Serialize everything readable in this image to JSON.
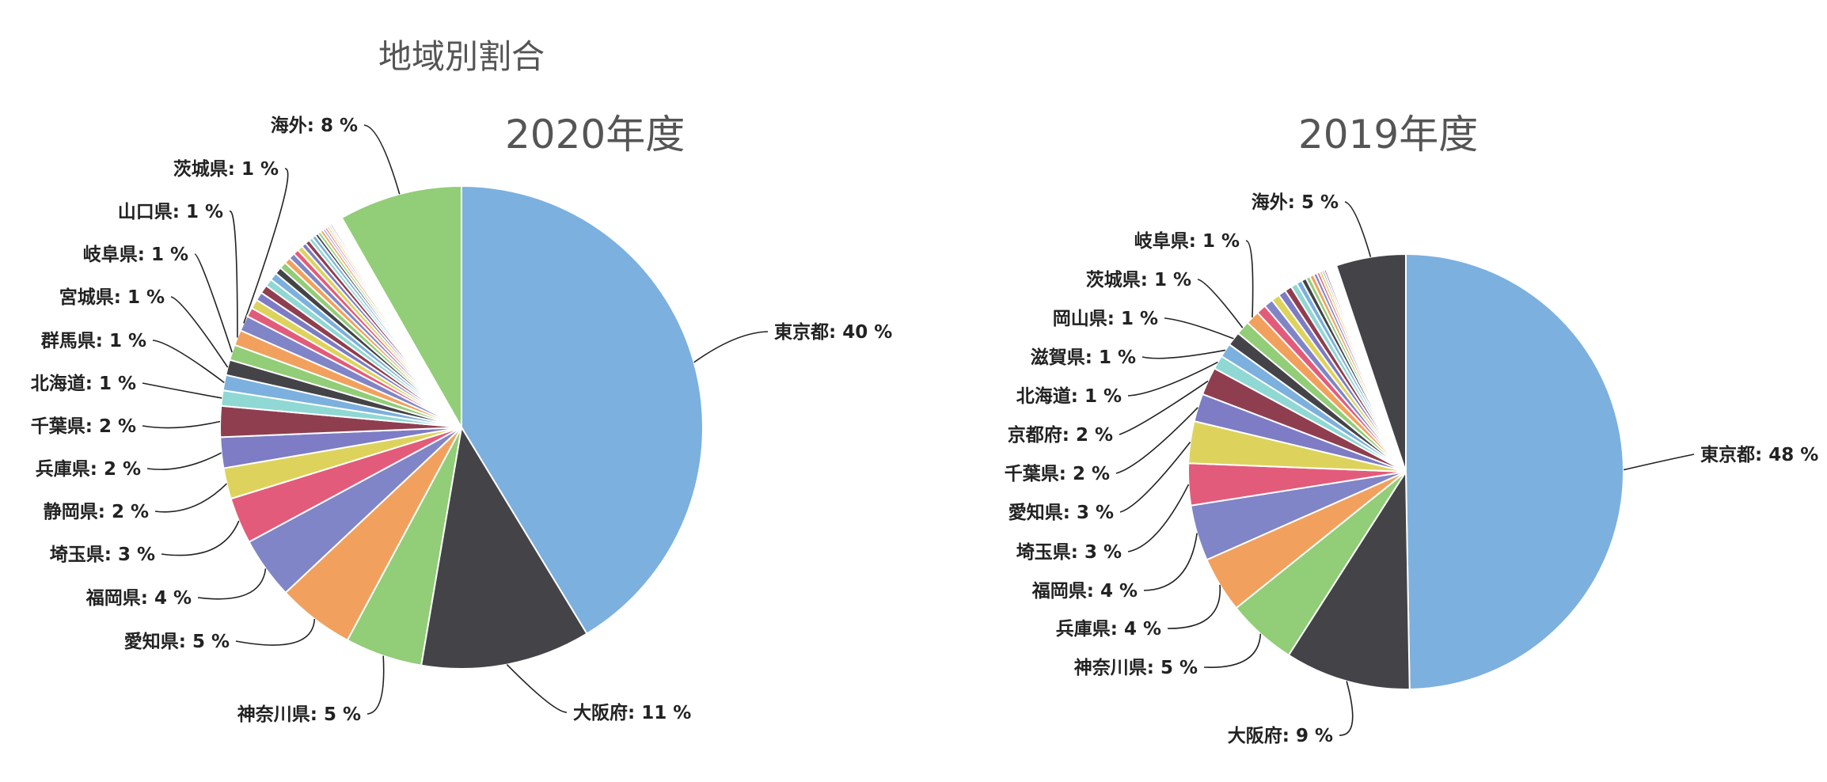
{
  "title": "地域別割合",
  "chart_data": [
    {
      "type": "pie",
      "title": "2020年度",
      "total_segments": 47,
      "slices": [
        {
          "label": "東京都",
          "value": 40,
          "display": "東京都: 40 %",
          "color": "#7cb0de"
        },
        {
          "label": "大阪府",
          "value": 11,
          "display": "大阪府: 11 %",
          "color": "#434348"
        },
        {
          "label": "神奈川県",
          "value": 5,
          "display": "神奈川県: 5 %",
          "color": "#92cd77"
        },
        {
          "label": "愛知県",
          "value": 5,
          "display": "愛知県: 5 %",
          "color": "#f1a15d"
        },
        {
          "label": "福岡県",
          "value": 4,
          "display": "福岡県: 4 %",
          "color": "#7f85c6"
        },
        {
          "label": "埼玉県",
          "value": 3,
          "display": "埼玉県: 3 %",
          "color": "#e35b7a"
        },
        {
          "label": "静岡県",
          "value": 2,
          "display": "静岡県: 2 %",
          "color": "#ddd35c"
        },
        {
          "label": "兵庫県",
          "value": 2,
          "display": "兵庫県: 2 %",
          "color": "#7d7cc4"
        },
        {
          "label": "千葉県",
          "value": 2,
          "display": "千葉県: 2 %",
          "color": "#8f3e50"
        },
        {
          "label": "北海道",
          "value": 1,
          "display": "北海道: 1 %",
          "color": "#8fd8d4"
        },
        {
          "label": "群馬県",
          "value": 1,
          "display": "群馬県: 1 %",
          "color": "#7cb0de"
        },
        {
          "label": "宮城県",
          "value": 1,
          "display": "宮城県: 1 %",
          "color": "#434348"
        },
        {
          "label": "岐阜県",
          "value": 1,
          "display": "岐阜県: 1 %",
          "color": "#92cd77"
        },
        {
          "label": "山口県",
          "value": 1,
          "display": "山口県: 1 %",
          "color": "#f1a15d"
        },
        {
          "label": "茨城県",
          "value": 1,
          "display": "茨城県: 1 %",
          "color": "#7f85c6"
        },
        {
          "label": "",
          "value": 0.6,
          "display": "",
          "color": "#e35b7a"
        },
        {
          "label": "",
          "value": 0.6,
          "display": "",
          "color": "#ddd35c"
        },
        {
          "label": "",
          "value": 0.55,
          "display": "",
          "color": "#7d7cc4"
        },
        {
          "label": "",
          "value": 0.55,
          "display": "",
          "color": "#8f3e50"
        },
        {
          "label": "",
          "value": 0.5,
          "display": "",
          "color": "#8fd8d4"
        },
        {
          "label": "",
          "value": 0.5,
          "display": "",
          "color": "#7cb0de"
        },
        {
          "label": "",
          "value": 0.45,
          "display": "",
          "color": "#434348"
        },
        {
          "label": "",
          "value": 0.45,
          "display": "",
          "color": "#92cd77"
        },
        {
          "label": "",
          "value": 0.4,
          "display": "",
          "color": "#f1a15d"
        },
        {
          "label": "",
          "value": 0.4,
          "display": "",
          "color": "#7f85c6"
        },
        {
          "label": "",
          "value": 0.35,
          "display": "",
          "color": "#e35b7a"
        },
        {
          "label": "",
          "value": 0.35,
          "display": "",
          "color": "#ddd35c"
        },
        {
          "label": "",
          "value": 0.3,
          "display": "",
          "color": "#7d7cc4"
        },
        {
          "label": "",
          "value": 0.3,
          "display": "",
          "color": "#8f3e50"
        },
        {
          "label": "",
          "value": 0.25,
          "display": "",
          "color": "#8fd8d4"
        },
        {
          "label": "",
          "value": 0.25,
          "display": "",
          "color": "#7cb0de"
        },
        {
          "label": "",
          "value": 0.2,
          "display": "",
          "color": "#434348"
        },
        {
          "label": "",
          "value": 0.2,
          "display": "",
          "color": "#92cd77"
        },
        {
          "label": "",
          "value": 0.2,
          "display": "",
          "color": "#f1a15d"
        },
        {
          "label": "",
          "value": 0.15,
          "display": "",
          "color": "#7f85c6"
        },
        {
          "label": "",
          "value": 0.15,
          "display": "",
          "color": "#e35b7a"
        },
        {
          "label": "",
          "value": 0.15,
          "display": "",
          "color": "#ddd35c"
        },
        {
          "label": "",
          "value": 0.12,
          "display": "",
          "color": "#7d7cc4"
        },
        {
          "label": "",
          "value": 0.12,
          "display": "",
          "color": "#8f3e50"
        },
        {
          "label": "",
          "value": 0.1,
          "display": "",
          "color": "#8fd8d4"
        },
        {
          "label": "",
          "value": 0.1,
          "display": "",
          "color": "#7cb0de"
        },
        {
          "label": "",
          "value": 0.1,
          "display": "",
          "color": "#434348"
        },
        {
          "label": "",
          "value": 0.08,
          "display": "",
          "color": "#92cd77"
        },
        {
          "label": "",
          "value": 0.08,
          "display": "",
          "color": "#f1a15d"
        },
        {
          "label": "",
          "value": 0.08,
          "display": "",
          "color": "#7f85c6"
        },
        {
          "label": "",
          "value": 0.2,
          "display": "",
          "color": "#ffffff"
        },
        {
          "label": "海外",
          "value": 8,
          "display": "海外: 8 %",
          "color": "#92cd77"
        }
      ]
    },
    {
      "type": "pie",
      "title": "2019年度",
      "slices": [
        {
          "label": "東京都",
          "value": 48,
          "display": "東京都: 48 %",
          "color": "#7cb0de"
        },
        {
          "label": "大阪府",
          "value": 9,
          "display": "大阪府: 9 %",
          "color": "#434348"
        },
        {
          "label": "神奈川県",
          "value": 5,
          "display": "神奈川県: 5 %",
          "color": "#92cd77"
        },
        {
          "label": "兵庫県",
          "value": 4,
          "display": "兵庫県: 4 %",
          "color": "#f1a15d"
        },
        {
          "label": "福岡県",
          "value": 4,
          "display": "福岡県: 4 %",
          "color": "#7f85c6"
        },
        {
          "label": "埼玉県",
          "value": 3,
          "display": "埼玉県: 3 %",
          "color": "#e35b7a"
        },
        {
          "label": "愛知県",
          "value": 3,
          "display": "愛知県: 3 %",
          "color": "#ddd35c"
        },
        {
          "label": "千葉県",
          "value": 2,
          "display": "千葉県: 2 %",
          "color": "#7d7cc4"
        },
        {
          "label": "京都府",
          "value": 2,
          "display": "京都府: 2 %",
          "color": "#8f3e50"
        },
        {
          "label": "北海道",
          "value": 1,
          "display": "北海道: 1 %",
          "color": "#8fd8d4"
        },
        {
          "label": "滋賀県",
          "value": 1,
          "display": "滋賀県: 1 %",
          "color": "#7cb0de"
        },
        {
          "label": "岡山県",
          "value": 1,
          "display": "岡山県: 1 %",
          "color": "#434348"
        },
        {
          "label": "茨城県",
          "value": 1,
          "display": "茨城県: 1 %",
          "color": "#92cd77"
        },
        {
          "label": "岐阜県",
          "value": 1,
          "display": "岐阜県: 1 %",
          "color": "#f1a15d"
        },
        {
          "label": "",
          "value": 0.7,
          "display": "",
          "color": "#e35b7a"
        },
        {
          "label": "",
          "value": 0.65,
          "display": "",
          "color": "#7f85c6"
        },
        {
          "label": "",
          "value": 0.6,
          "display": "",
          "color": "#ddd35c"
        },
        {
          "label": "",
          "value": 0.55,
          "display": "",
          "color": "#7d7cc4"
        },
        {
          "label": "",
          "value": 0.5,
          "display": "",
          "color": "#8f3e50"
        },
        {
          "label": "",
          "value": 0.45,
          "display": "",
          "color": "#8fd8d4"
        },
        {
          "label": "",
          "value": 0.4,
          "display": "",
          "color": "#7cb0de"
        },
        {
          "label": "",
          "value": 0.35,
          "display": "",
          "color": "#434348"
        },
        {
          "label": "",
          "value": 0.3,
          "display": "",
          "color": "#92cd77"
        },
        {
          "label": "",
          "value": 0.3,
          "display": "",
          "color": "#f1a15d"
        },
        {
          "label": "",
          "value": 0.25,
          "display": "",
          "color": "#7f85c6"
        },
        {
          "label": "",
          "value": 0.2,
          "display": "",
          "color": "#e35b7a"
        },
        {
          "label": "",
          "value": 0.2,
          "display": "",
          "color": "#ddd35c"
        },
        {
          "label": "",
          "value": 0.15,
          "display": "",
          "color": "#7d7cc4"
        },
        {
          "label": "",
          "value": 0.15,
          "display": "",
          "color": "#8f3e50"
        },
        {
          "label": "",
          "value": 0.12,
          "display": "",
          "color": "#8fd8d4"
        },
        {
          "label": "",
          "value": 0.1,
          "display": "",
          "color": "#7cb0de"
        },
        {
          "label": "",
          "value": 0.1,
          "display": "",
          "color": "#434348"
        },
        {
          "label": "",
          "value": 0.08,
          "display": "",
          "color": "#92cd77"
        },
        {
          "label": "",
          "value": 0.08,
          "display": "",
          "color": "#f1a15d"
        },
        {
          "label": "",
          "value": 0.3,
          "display": "",
          "color": "#ffffff"
        },
        {
          "label": "海外",
          "value": 5,
          "display": "海外: 5 %",
          "color": "#434348"
        }
      ]
    }
  ]
}
